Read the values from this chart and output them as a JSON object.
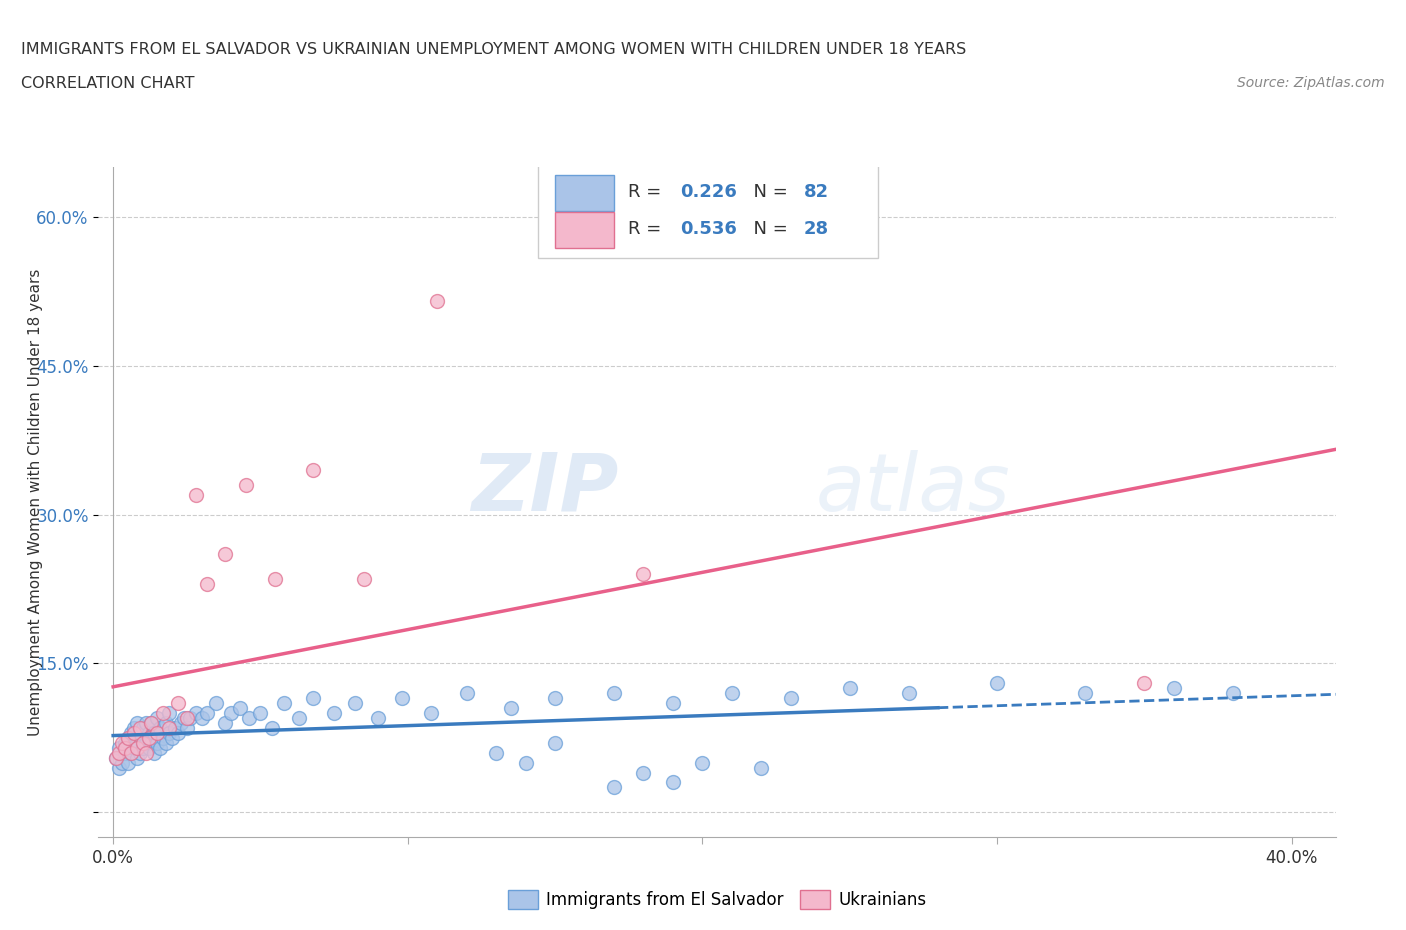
{
  "title": "IMMIGRANTS FROM EL SALVADOR VS UKRAINIAN UNEMPLOYMENT AMONG WOMEN WITH CHILDREN UNDER 18 YEARS",
  "subtitle": "CORRELATION CHART",
  "source": "Source: ZipAtlas.com",
  "ylabel": "Unemployment Among Women with Children Under 18 years",
  "xlim": [
    -0.005,
    0.415
  ],
  "ylim": [
    -0.025,
    0.65
  ],
  "x_ticks": [
    0.0,
    0.1,
    0.2,
    0.3,
    0.4
  ],
  "x_tick_labels": [
    "0.0%",
    "",
    "",
    "",
    "40.0%"
  ],
  "y_ticks": [
    0.0,
    0.15,
    0.3,
    0.45,
    0.6
  ],
  "y_tick_labels": [
    "",
    "15.0%",
    "30.0%",
    "45.0%",
    "60.0%"
  ],
  "scatter_blue_color": "#aac4e8",
  "scatter_blue_edge": "#6a9fd8",
  "scatter_pink_color": "#f4b8cc",
  "scatter_pink_edge": "#e07090",
  "blue_line_color": "#3a7bbf",
  "pink_line_color": "#e8608a",
  "grid_color": "#cccccc",
  "background_color": "#ffffff",
  "legend_blue_color": "#aac4e8",
  "legend_pink_color": "#f4b8cc",
  "text_color": "#333333",
  "r_n_color": "#3a7bbf",
  "watermark_color": "#d5e5f5",
  "el_salvador_x": [
    0.001,
    0.002,
    0.002,
    0.003,
    0.004,
    0.004,
    0.005,
    0.005,
    0.006,
    0.006,
    0.007,
    0.007,
    0.008,
    0.008,
    0.008,
    0.009,
    0.009,
    0.01,
    0.01,
    0.011,
    0.011,
    0.012,
    0.012,
    0.013,
    0.013,
    0.014,
    0.014,
    0.015,
    0.015,
    0.016,
    0.016,
    0.017,
    0.018,
    0.018,
    0.019,
    0.019,
    0.02,
    0.021,
    0.022,
    0.023,
    0.024,
    0.025,
    0.026,
    0.028,
    0.03,
    0.032,
    0.035,
    0.038,
    0.04,
    0.043,
    0.046,
    0.05,
    0.054,
    0.058,
    0.063,
    0.068,
    0.075,
    0.082,
    0.09,
    0.098,
    0.108,
    0.12,
    0.135,
    0.15,
    0.17,
    0.19,
    0.21,
    0.23,
    0.25,
    0.27,
    0.3,
    0.33,
    0.36,
    0.38,
    0.15,
    0.18,
    0.2,
    0.22,
    0.17,
    0.19,
    0.13,
    0.14
  ],
  "el_salvador_y": [
    0.055,
    0.045,
    0.065,
    0.05,
    0.06,
    0.07,
    0.05,
    0.075,
    0.06,
    0.08,
    0.065,
    0.085,
    0.055,
    0.07,
    0.09,
    0.06,
    0.08,
    0.065,
    0.085,
    0.07,
    0.09,
    0.065,
    0.08,
    0.07,
    0.09,
    0.06,
    0.08,
    0.07,
    0.095,
    0.065,
    0.085,
    0.075,
    0.07,
    0.09,
    0.08,
    0.1,
    0.075,
    0.085,
    0.08,
    0.09,
    0.095,
    0.085,
    0.095,
    0.1,
    0.095,
    0.1,
    0.11,
    0.09,
    0.1,
    0.105,
    0.095,
    0.1,
    0.085,
    0.11,
    0.095,
    0.115,
    0.1,
    0.11,
    0.095,
    0.115,
    0.1,
    0.12,
    0.105,
    0.115,
    0.12,
    0.11,
    0.12,
    0.115,
    0.125,
    0.12,
    0.13,
    0.12,
    0.125,
    0.12,
    0.07,
    0.04,
    0.05,
    0.045,
    0.025,
    0.03,
    0.06,
    0.05
  ],
  "ukraine_x": [
    0.001,
    0.002,
    0.003,
    0.004,
    0.005,
    0.006,
    0.007,
    0.008,
    0.009,
    0.01,
    0.011,
    0.012,
    0.013,
    0.015,
    0.017,
    0.019,
    0.022,
    0.025,
    0.028,
    0.032,
    0.038,
    0.045,
    0.055,
    0.068,
    0.085,
    0.11,
    0.18,
    0.35
  ],
  "ukraine_y": [
    0.055,
    0.06,
    0.07,
    0.065,
    0.075,
    0.06,
    0.08,
    0.065,
    0.085,
    0.07,
    0.06,
    0.075,
    0.09,
    0.08,
    0.1,
    0.085,
    0.11,
    0.095,
    0.32,
    0.23,
    0.26,
    0.33,
    0.235,
    0.345,
    0.235,
    0.515,
    0.24,
    0.13
  ]
}
